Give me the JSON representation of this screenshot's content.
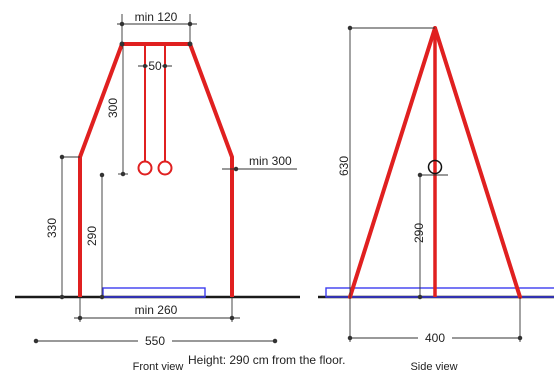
{
  "colors": {
    "frame": "#e02020",
    "ground": "#1a1a1a",
    "mat": "#3d3df0",
    "dim_line": "#333333",
    "text": "#222222",
    "background": "#ffffff"
  },
  "front_view": {
    "caption": "Front view",
    "labels": {
      "top_width": "min 120",
      "ring_gap": "50",
      "rope_length": "300",
      "side_clearance": "min 300",
      "post_height": "330",
      "ring_height": "290",
      "mat_width": "min 260",
      "base_width": "550"
    }
  },
  "side_view": {
    "caption": "Side view",
    "labels": {
      "total_height": "630",
      "ring_height": "290",
      "base_depth": "400"
    }
  },
  "note": "Height: 290 cm from the floor."
}
